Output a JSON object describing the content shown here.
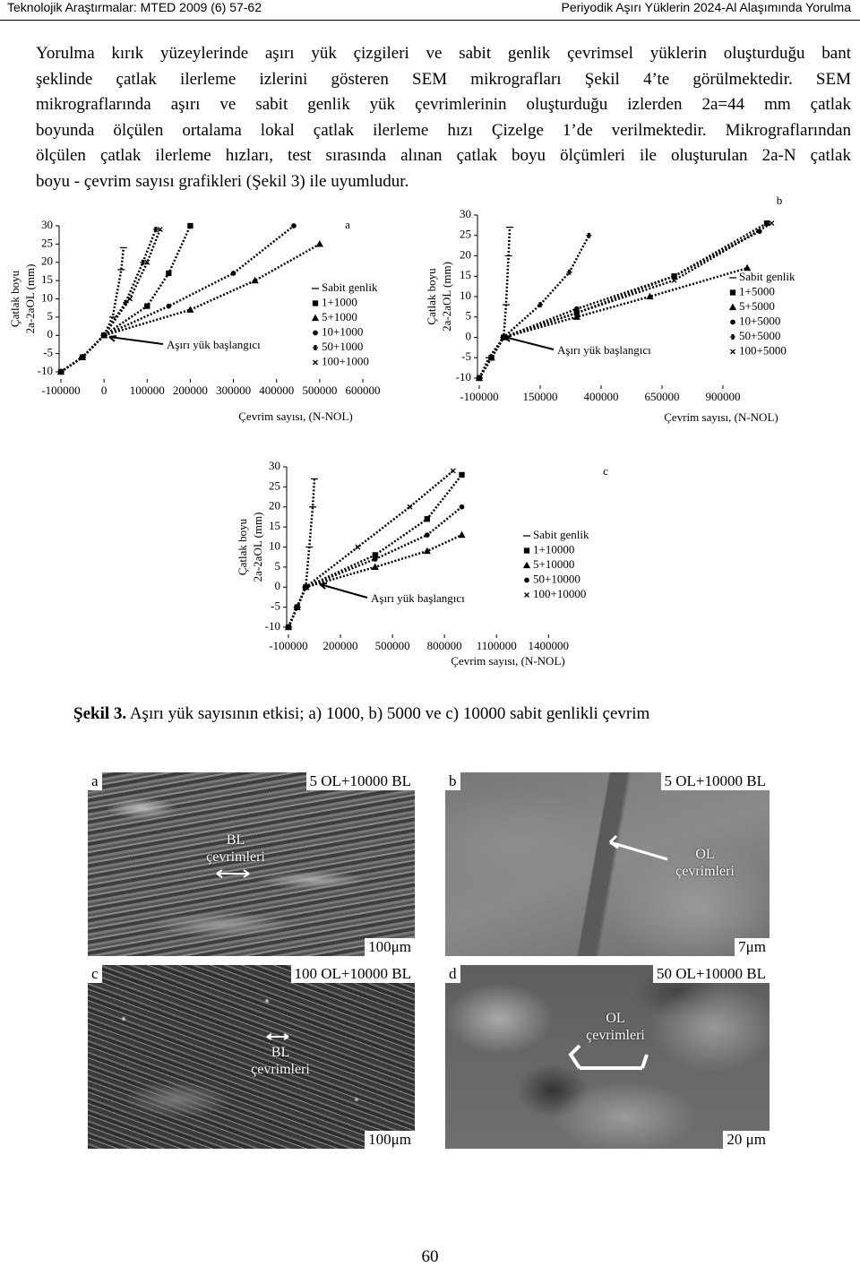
{
  "header": {
    "left": "Teknolojik Araştırmalar: MTED 2009 (6) 57-62",
    "right": "Periyodik Aşırı Yüklerin 2024-Al Alaşımında Yorulma"
  },
  "paragraph": [
    "Yorulma kırık yüzeylerinde aşırı yük çizgileri ve sabit genlik çevrimsel yüklerin oluşturduğu bant",
    "şeklinde çatlak ilerleme izlerini gösteren SEM mikrografları Şekil 4’te görülmektedir. SEM",
    "mikrograflarında aşırı ve sabit genlik yük çevrimlerinin oluşturduğu izlerden 2a=44 mm çatlak",
    "boyunda ölçülen ortalama lokal çatlak ilerleme hızı Çizelge 1’de verilmektedir. Mikrograflarından",
    "ölçülen çatlak ilerleme hızları, test sırasında alınan çatlak boyu ölçümleri ile oluşturulan 2a-N çatlak",
    "boyu - çevrim sayısı grafikleri (Şekil 3) ile uyumludur."
  ],
  "chart_data": [
    {
      "type": "scatter",
      "panel": "a",
      "ylabel": [
        "Çatlak boyu",
        "2a-2aOL (mm)"
      ],
      "xlabel": "Çevrim sayısı, (N-NOL)",
      "annotation": "Aşırı yük başlangıcı",
      "xlim": [
        -100000,
        600000
      ],
      "ylim": [
        -10,
        30
      ],
      "xticks": [
        -100000,
        0,
        100000,
        200000,
        300000,
        400000,
        500000,
        600000
      ],
      "yticks": [
        -10,
        -5,
        0,
        5,
        10,
        15,
        20,
        25,
        30
      ],
      "legend": "right",
      "series": [
        {
          "name": "Sabit genlik",
          "marker": "dash",
          "color": "#000000",
          "x": [
            -100000,
            -50000,
            0,
            20000,
            40000,
            45000
          ],
          "values": [
            -10,
            -6,
            0,
            5,
            18,
            24
          ]
        },
        {
          "name": "1+1000",
          "marker": "square",
          "color": "#000000",
          "x": [
            -100000,
            -50000,
            0,
            100000,
            150000,
            200000
          ],
          "values": [
            -10,
            -6,
            0,
            8,
            17,
            30
          ]
        },
        {
          "name": "5+1000",
          "marker": "triangle",
          "color": "#000000",
          "x": [
            -100000,
            -50000,
            0,
            200000,
            350000,
            500000
          ],
          "values": [
            -10,
            -6,
            0,
            7,
            15,
            25
          ]
        },
        {
          "name": "10+1000",
          "marker": "circle",
          "color": "#000000",
          "x": [
            -100000,
            -50000,
            0,
            150000,
            300000,
            440000
          ],
          "values": [
            -10,
            -6,
            0,
            8,
            17,
            30
          ]
        },
        {
          "name": "50+1000",
          "marker": "star",
          "color": "#000000",
          "x": [
            -100000,
            -50000,
            0,
            50000,
            90000,
            120000
          ],
          "values": [
            -10,
            -6,
            0,
            9,
            20,
            29
          ]
        },
        {
          "name": "100+1000",
          "marker": "cross",
          "color": "#000000",
          "x": [
            -100000,
            -50000,
            0,
            60000,
            100000,
            130000
          ],
          "values": [
            -10,
            -6,
            0,
            10,
            20,
            29
          ]
        }
      ]
    },
    {
      "type": "scatter",
      "panel": "b",
      "ylabel": [
        "Çatlak boyu",
        "2a-2aOL (mm)"
      ],
      "xlabel": "Çevrim sayısı, (N-NOL)",
      "annotation": "Aşırı yük başlangıcı",
      "xlim": [
        -100000,
        1150000
      ],
      "ylim": [
        -10,
        30
      ],
      "xticks": [
        -100000,
        150000,
        400000,
        650000,
        900000
      ],
      "yticks": [
        -10,
        -5,
        0,
        5,
        10,
        15,
        20,
        25,
        30
      ],
      "legend": "right",
      "series": [
        {
          "name": "Sabit genlik",
          "marker": "dash",
          "color": "#000000",
          "x": [
            -100000,
            -60000,
            0,
            10000,
            20000,
            25000
          ],
          "values": [
            -10,
            -5,
            0,
            8,
            20,
            27
          ]
        },
        {
          "name": "1+5000",
          "marker": "square",
          "color": "#000000",
          "x": [
            -100000,
            -50000,
            0,
            300000,
            700000,
            1080000
          ],
          "values": [
            -10,
            -5,
            0,
            6,
            15,
            28
          ]
        },
        {
          "name": "5+5000",
          "marker": "triangle",
          "color": "#000000",
          "x": [
            -100000,
            -50000,
            0,
            300000,
            600000,
            1000000
          ],
          "values": [
            -10,
            -5,
            0,
            5,
            10,
            17
          ]
        },
        {
          "name": "10+5000",
          "marker": "circle",
          "color": "#000000",
          "x": [
            -100000,
            -50000,
            0,
            300000,
            700000,
            1050000
          ],
          "values": [
            -10,
            -5,
            0,
            7,
            15,
            26
          ]
        },
        {
          "name": "50+5000",
          "marker": "star",
          "color": "#000000",
          "x": [
            -100000,
            -50000,
            0,
            150000,
            270000,
            350000
          ],
          "values": [
            -10,
            -5,
            0,
            8,
            16,
            25
          ]
        },
        {
          "name": "100+5000",
          "marker": "cross",
          "color": "#000000",
          "x": [
            -100000,
            -50000,
            0,
            300000,
            700000,
            1100000
          ],
          "values": [
            -10,
            -5,
            0,
            6,
            14,
            28
          ]
        }
      ]
    },
    {
      "type": "scatter",
      "panel": "c",
      "ylabel": [
        "Çatlak boyu",
        "2a-2aOL (mm)"
      ],
      "xlabel": "Çevrim sayısı, (N-NOL)",
      "annotation": "Aşırı yük başlangıcı",
      "xlim": [
        -100000,
        1600000
      ],
      "ylim": [
        -10,
        30
      ],
      "xticks": [
        -100000,
        200000,
        500000,
        800000,
        1100000,
        1400000
      ],
      "yticks": [
        -10,
        -5,
        0,
        5,
        10,
        15,
        20,
        25,
        30
      ],
      "legend": "right",
      "series": [
        {
          "name": "Sabit genlik",
          "marker": "dash",
          "color": "#000000",
          "x": [
            -100000,
            -50000,
            0,
            20000,
            40000,
            50000
          ],
          "values": [
            -10,
            -5,
            0,
            10,
            20,
            27
          ]
        },
        {
          "name": "1+10000",
          "marker": "square",
          "color": "#000000",
          "x": [
            -100000,
            -50000,
            0,
            400000,
            700000,
            900000
          ],
          "values": [
            -10,
            -5,
            0,
            8,
            17,
            28
          ]
        },
        {
          "name": "5+10000",
          "marker": "triangle",
          "color": "#000000",
          "x": [
            -100000,
            -50000,
            0,
            400000,
            700000,
            900000
          ],
          "values": [
            -10,
            -5,
            0,
            5,
            9,
            13
          ]
        },
        {
          "name": "50+10000",
          "marker": "circle",
          "color": "#000000",
          "x": [
            -100000,
            -50000,
            0,
            400000,
            700000,
            900000
          ],
          "values": [
            -10,
            -5,
            0,
            7,
            13,
            20
          ]
        },
        {
          "name": "100+10000",
          "marker": "cross",
          "color": "#000000",
          "x": [
            -100000,
            -50000,
            0,
            300000,
            600000,
            850000
          ],
          "values": [
            -10,
            -5,
            0,
            10,
            20,
            29
          ]
        }
      ]
    }
  ],
  "figure3": {
    "label": "Şekil 3.",
    "caption": "Aşırı yük sayısının etkisi; a) 1000, b) 5000 ve c) 10000 sabit genlikli çevrim"
  },
  "micrographs": [
    {
      "letter": "a",
      "label": "5 OL+10000 BL",
      "scale": "100μm",
      "annotation": [
        "BL",
        "çevrimleri"
      ]
    },
    {
      "letter": "b",
      "label": "5 OL+10000 BL",
      "scale": "7μm",
      "annotation": [
        "OL",
        "çevrimleri"
      ]
    },
    {
      "letter": "c",
      "label": "100 OL+10000 BL",
      "scale": "100μm",
      "annotation": [
        "BL",
        "çevrimleri"
      ]
    },
    {
      "letter": "d",
      "label": "50 OL+10000 BL",
      "scale": "20 μm",
      "annotation": [
        "OL",
        "çevrimleri"
      ]
    }
  ],
  "page_number": "60"
}
